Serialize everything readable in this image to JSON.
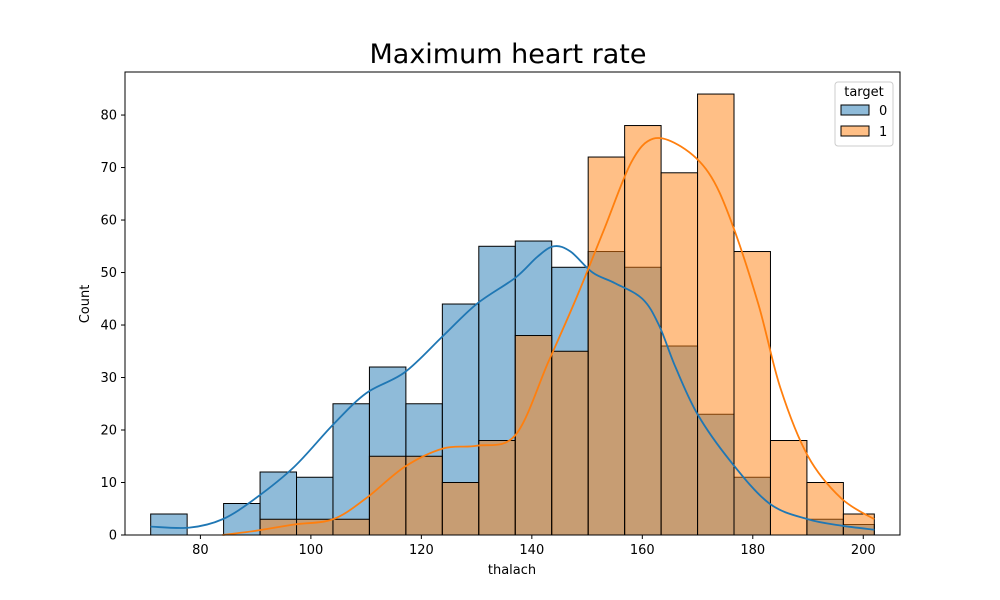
{
  "chart_data": {
    "type": "histogram",
    "title": "Maximum heart rate",
    "xlabel": "thalach",
    "ylabel": "Count",
    "xlim": [
      66.35,
      206.65
    ],
    "ylim": [
      0,
      88.2
    ],
    "xticks": [
      80,
      100,
      120,
      140,
      160,
      180,
      200
    ],
    "yticks": [
      0,
      10,
      20,
      30,
      40,
      50,
      60,
      70,
      80
    ],
    "bin_edges": [
      71,
      77.6,
      84.2,
      90.8,
      97.4,
      104,
      110.6,
      117.2,
      123.8,
      130.4,
      137,
      143.6,
      150.2,
      156.8,
      163.4,
      170,
      176.6,
      183.2,
      189.8,
      196.4,
      202
    ],
    "grid": false,
    "legend": {
      "title": "target",
      "placement": "top-right"
    },
    "series": [
      {
        "name": "0",
        "color": "#1f77b4",
        "counts": [
          4,
          0,
          6,
          12,
          11,
          25,
          32,
          25,
          44,
          55,
          56,
          51,
          54,
          51,
          36,
          23,
          11,
          0,
          3,
          2
        ],
        "kde": [
          [
            71,
            1.6
          ],
          [
            78,
            1.4
          ],
          [
            84,
            3
          ],
          [
            90,
            7
          ],
          [
            97,
            13
          ],
          [
            104,
            21
          ],
          [
            110,
            27
          ],
          [
            117,
            31
          ],
          [
            124,
            38
          ],
          [
            130,
            44
          ],
          [
            137,
            49
          ],
          [
            141,
            53
          ],
          [
            144,
            55
          ],
          [
            147,
            54
          ],
          [
            151,
            50
          ],
          [
            155,
            48
          ],
          [
            160,
            45
          ],
          [
            163,
            40
          ],
          [
            166,
            32
          ],
          [
            170,
            23
          ],
          [
            176,
            14
          ],
          [
            183,
            6
          ],
          [
            190,
            3
          ],
          [
            196,
            1.8
          ],
          [
            202,
            1
          ]
        ]
      },
      {
        "name": "1",
        "color": "#ff7f0e",
        "counts": [
          0,
          0,
          0,
          3,
          3,
          3,
          15,
          15,
          10,
          18,
          38,
          35,
          72,
          78,
          69,
          84,
          54,
          18,
          10,
          4
        ],
        "kde": [
          [
            84,
            0
          ],
          [
            90,
            0.8
          ],
          [
            97,
            2
          ],
          [
            104,
            3
          ],
          [
            110,
            7
          ],
          [
            117,
            13
          ],
          [
            124,
            16.5
          ],
          [
            130,
            17
          ],
          [
            137,
            19
          ],
          [
            143,
            33
          ],
          [
            148,
            45
          ],
          [
            153,
            58
          ],
          [
            158,
            71
          ],
          [
            162,
            75.5
          ],
          [
            167,
            74
          ],
          [
            172,
            69
          ],
          [
            176,
            60
          ],
          [
            181,
            44
          ],
          [
            185,
            28
          ],
          [
            190,
            15
          ],
          [
            196,
            7
          ],
          [
            202,
            3
          ]
        ]
      }
    ]
  }
}
